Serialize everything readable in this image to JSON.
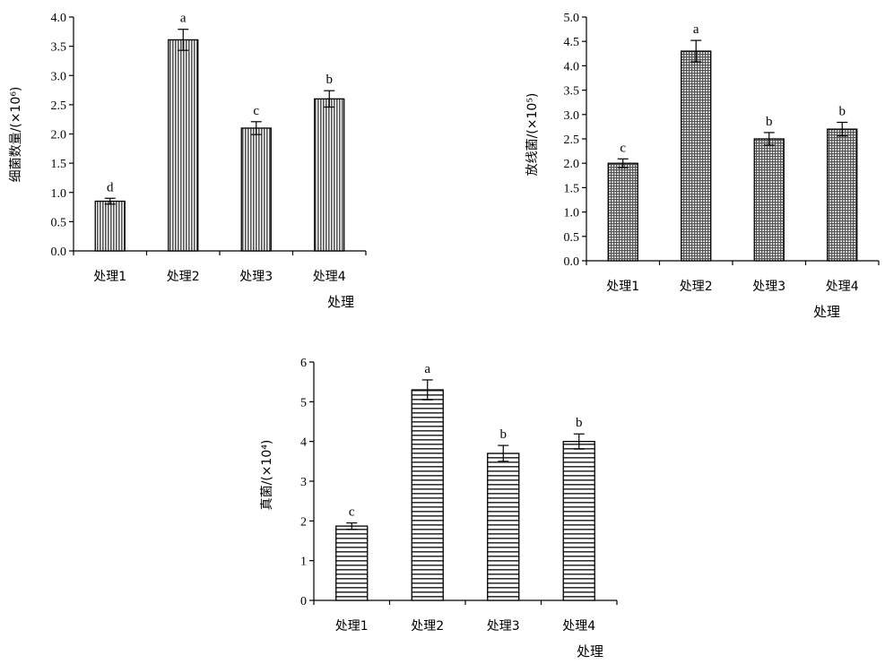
{
  "chart_data": [
    {
      "type": "bar",
      "categories": [
        "处理1",
        "处理2",
        "处理3",
        "处理4"
      ],
      "values": [
        0.85,
        3.61,
        2.1,
        2.6
      ],
      "errors": [
        0.05,
        0.18,
        0.11,
        0.14
      ],
      "significance": [
        "d",
        "a",
        "c",
        "b"
      ],
      "xlabel": "处理",
      "ylabel": "细菌数量/(×10⁶)",
      "ylim": [
        0,
        4.0
      ],
      "yticks": [
        "0.0",
        "0.5",
        "1.0",
        "1.5",
        "2.0",
        "2.5",
        "3.0",
        "3.5",
        "4.0"
      ],
      "pattern": "vertical-lines",
      "grid": false
    },
    {
      "type": "bar",
      "categories": [
        "处理1",
        "处理2",
        "处理3",
        "处理4"
      ],
      "values": [
        2.0,
        4.3,
        2.5,
        2.7
      ],
      "errors": [
        0.09,
        0.22,
        0.13,
        0.14
      ],
      "significance": [
        "c",
        "a",
        "b",
        "b"
      ],
      "xlabel": "处理",
      "ylabel": "放线菌/(×10⁵)",
      "ylim": [
        0,
        5.0
      ],
      "yticks": [
        "0.0",
        "0.5",
        "1.0",
        "1.5",
        "2.0",
        "2.5",
        "3.0",
        "3.5",
        "4.0",
        "4.5",
        "5.0"
      ],
      "pattern": "grid",
      "grid": false
    },
    {
      "type": "bar",
      "categories": [
        "处理1",
        "处理2",
        "处理3",
        "处理4"
      ],
      "values": [
        1.87,
        5.3,
        3.7,
        4.0
      ],
      "errors": [
        0.08,
        0.25,
        0.2,
        0.19
      ],
      "significance": [
        "c",
        "a",
        "b",
        "b"
      ],
      "xlabel": "处理",
      "ylabel": "真菌/(×10⁴)",
      "ylim": [
        0,
        6
      ],
      "yticks": [
        "0",
        "1",
        "2",
        "3",
        "4",
        "5",
        "6"
      ],
      "pattern": "horizontal-lines",
      "grid": false
    }
  ]
}
